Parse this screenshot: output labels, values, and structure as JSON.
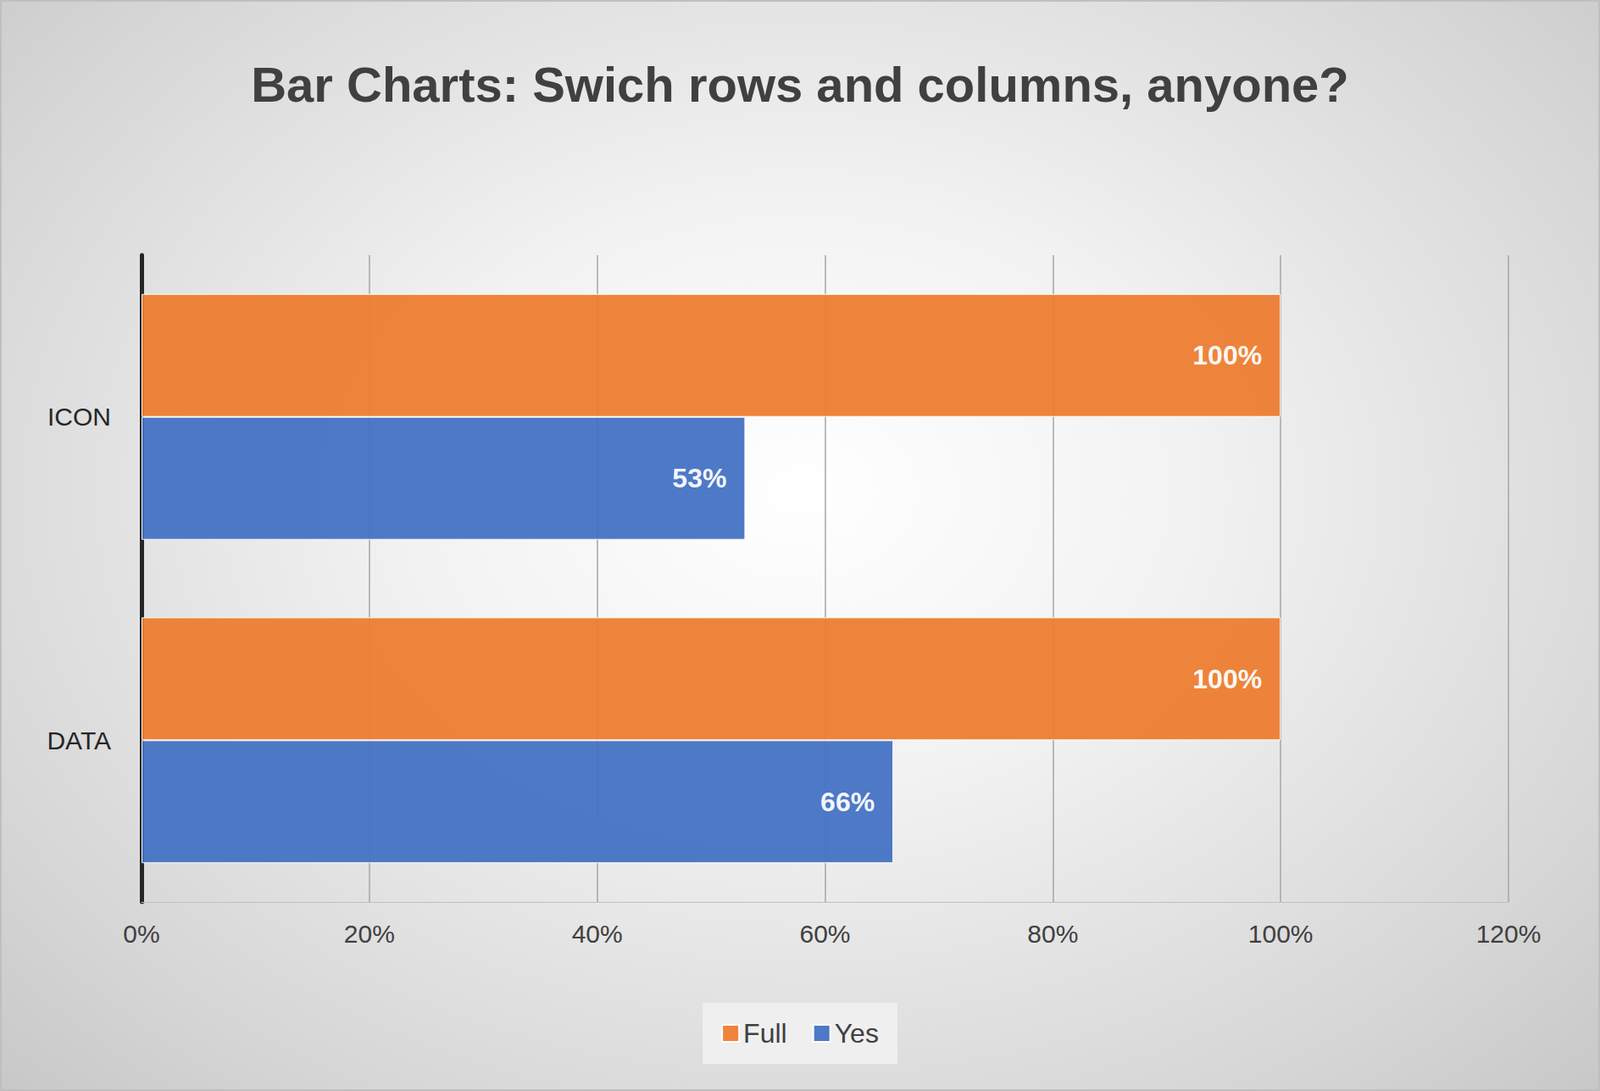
{
  "chart_data": {
    "type": "bar",
    "title": "Bar Charts: Swich rows and columns, anyone?",
    "orientation": "horizontal",
    "categories": [
      "ICON",
      "DATA"
    ],
    "series": [
      {
        "name": "Full",
        "color": "#ed7d31",
        "values": [
          100,
          100
        ],
        "value_labels": [
          "100%",
          "100%"
        ]
      },
      {
        "name": "Yes",
        "color": "#4472c4",
        "values": [
          53,
          66
        ],
        "value_labels": [
          "53%",
          "66%"
        ]
      }
    ],
    "xlim": [
      0,
      120
    ],
    "xticks": [
      {
        "value": 0,
        "label": "0%"
      },
      {
        "value": 20,
        "label": "20%"
      },
      {
        "value": 40,
        "label": "40%"
      },
      {
        "value": 60,
        "label": "60%"
      },
      {
        "value": 80,
        "label": "80%"
      },
      {
        "value": 100,
        "label": "100%"
      },
      {
        "value": 120,
        "label": "120%"
      }
    ],
    "grid": true,
    "legend": "bottom",
    "data_labels": true
  }
}
